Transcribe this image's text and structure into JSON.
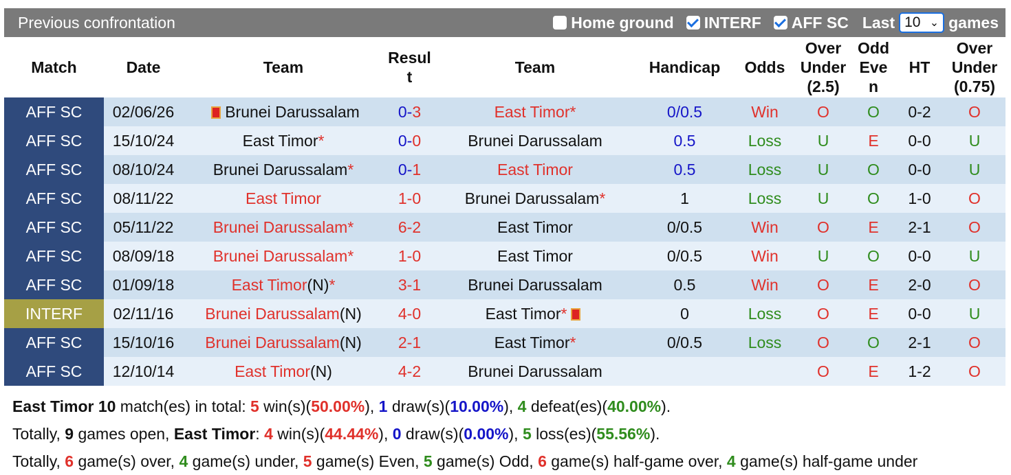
{
  "header": {
    "title": "Previous confrontation",
    "home_ground_label": "Home ground",
    "interf_label": "INTERF",
    "affsc_label": "AFF SC",
    "last_label": "Last",
    "last_value": "10",
    "games_label": "games"
  },
  "columns": {
    "match": "Match",
    "date": "Date",
    "team_home": "Team",
    "result_line1": "Resul",
    "result_line2": "t",
    "team_away": "Team",
    "handicap": "Handicap",
    "odds": "Odds",
    "ou_line1": "Over",
    "ou_line2": "Under",
    "ou_line3": "(2.5)",
    "oe_line1": "Odd",
    "oe_line2": "Eve",
    "oe_line3": "n",
    "ht": "HT",
    "ou2_line1": "Over",
    "ou2_line2": "Under",
    "ou2_line3": "(0.75)"
  },
  "rows": [
    {
      "match": "AFF SC",
      "date": "02/06/26",
      "home": "Brunei Darussalam",
      "home_flag": true,
      "home_star": "",
      "home_n": "",
      "home_color": "black",
      "res_home": "0",
      "res_away": "3",
      "res_color": "blue",
      "away": "East Timor",
      "away_star": "*",
      "away_n": "",
      "away_flag": false,
      "away_color": "red",
      "handicap": "0/0.5",
      "hc_color": "blue",
      "odds": "Win",
      "odds_color": "red",
      "ou": "O",
      "ou_color": "red",
      "oe": "O",
      "oe_color": "green",
      "ht": "0-2",
      "ou2": "O",
      "ou2_color": "red"
    },
    {
      "match": "AFF SC",
      "date": "15/10/24",
      "home": "East Timor",
      "home_flag": false,
      "home_star": "*",
      "home_n": "",
      "home_color": "black",
      "res_home": "0",
      "res_away": "0",
      "res_color": "blue",
      "away": "Brunei Darussalam",
      "away_star": "",
      "away_n": "",
      "away_flag": false,
      "away_color": "black",
      "handicap": "0.5",
      "hc_color": "blue",
      "odds": "Loss",
      "odds_color": "green",
      "ou": "U",
      "ou_color": "green",
      "oe": "E",
      "oe_color": "red",
      "ht": "0-0",
      "ou2": "U",
      "ou2_color": "green"
    },
    {
      "match": "AFF SC",
      "date": "08/10/24",
      "home": "Brunei Darussalam",
      "home_flag": false,
      "home_star": "*",
      "home_n": "",
      "home_color": "black",
      "res_home": "0",
      "res_away": "1",
      "res_color": "blue",
      "away": "East Timor",
      "away_star": "",
      "away_n": "",
      "away_flag": false,
      "away_color": "red",
      "handicap": "0.5",
      "hc_color": "blue",
      "odds": "Loss",
      "odds_color": "green",
      "ou": "U",
      "ou_color": "green",
      "oe": "O",
      "oe_color": "green",
      "ht": "0-0",
      "ou2": "U",
      "ou2_color": "green"
    },
    {
      "match": "AFF SC",
      "date": "08/11/22",
      "home": "East Timor",
      "home_flag": false,
      "home_star": "",
      "home_n": "",
      "home_color": "red",
      "res_home": "1",
      "res_away": "0",
      "res_color": "red",
      "away": "Brunei Darussalam",
      "away_star": "*",
      "away_n": "",
      "away_flag": false,
      "away_color": "black",
      "handicap": "1",
      "hc_color": "black",
      "odds": "Loss",
      "odds_color": "green",
      "ou": "U",
      "ou_color": "green",
      "oe": "O",
      "oe_color": "green",
      "ht": "1-0",
      "ou2": "O",
      "ou2_color": "red"
    },
    {
      "match": "AFF SC",
      "date": "05/11/22",
      "home": "Brunei Darussalam",
      "home_flag": false,
      "home_star": "*",
      "home_n": "",
      "home_color": "red",
      "res_home": "6",
      "res_away": "2",
      "res_color": "red",
      "away": "East Timor",
      "away_star": "",
      "away_n": "",
      "away_flag": false,
      "away_color": "black",
      "handicap": "0/0.5",
      "hc_color": "black",
      "odds": "Win",
      "odds_color": "red",
      "ou": "O",
      "ou_color": "red",
      "oe": "E",
      "oe_color": "red",
      "ht": "2-1",
      "ou2": "O",
      "ou2_color": "red"
    },
    {
      "match": "AFF SC",
      "date": "08/09/18",
      "home": "Brunei Darussalam",
      "home_flag": false,
      "home_star": "*",
      "home_n": "",
      "home_color": "red",
      "res_home": "1",
      "res_away": "0",
      "res_color": "red",
      "away": "East Timor",
      "away_star": "",
      "away_n": "",
      "away_flag": false,
      "away_color": "black",
      "handicap": "0/0.5",
      "hc_color": "black",
      "odds": "Win",
      "odds_color": "red",
      "ou": "U",
      "ou_color": "green",
      "oe": "O",
      "oe_color": "green",
      "ht": "0-0",
      "ou2": "U",
      "ou2_color": "green"
    },
    {
      "match": "AFF SC",
      "date": "01/09/18",
      "home": "East Timor",
      "home_flag": false,
      "home_star": "*",
      "home_n": "(N)",
      "home_color": "red",
      "res_home": "3",
      "res_away": "1",
      "res_color": "red",
      "away": "Brunei Darussalam",
      "away_star": "",
      "away_n": "",
      "away_flag": false,
      "away_color": "black",
      "handicap": "0.5",
      "hc_color": "black",
      "odds": "Win",
      "odds_color": "red",
      "ou": "O",
      "ou_color": "red",
      "oe": "E",
      "oe_color": "red",
      "ht": "2-0",
      "ou2": "O",
      "ou2_color": "red"
    },
    {
      "match": "INTERF",
      "date": "02/11/16",
      "home": "Brunei Darussalam",
      "home_flag": false,
      "home_star": "",
      "home_n": "(N)",
      "home_color": "red",
      "res_home": "4",
      "res_away": "0",
      "res_color": "red",
      "away": "East Timor",
      "away_star": "*",
      "away_n": "",
      "away_flag": true,
      "away_color": "black",
      "handicap": "0",
      "hc_color": "black",
      "odds": "Loss",
      "odds_color": "green",
      "ou": "O",
      "ou_color": "red",
      "oe": "E",
      "oe_color": "red",
      "ht": "0-0",
      "ou2": "U",
      "ou2_color": "green"
    },
    {
      "match": "AFF SC",
      "date": "15/10/16",
      "home": "Brunei Darussalam",
      "home_flag": false,
      "home_star": "",
      "home_n": "(N)",
      "home_color": "red",
      "res_home": "2",
      "res_away": "1",
      "res_color": "red",
      "away": "East Timor",
      "away_star": "*",
      "away_n": "",
      "away_flag": false,
      "away_color": "black",
      "handicap": "0/0.5",
      "hc_color": "black",
      "odds": "Loss",
      "odds_color": "green",
      "ou": "O",
      "ou_color": "red",
      "oe": "O",
      "oe_color": "green",
      "ht": "2-1",
      "ou2": "O",
      "ou2_color": "red"
    },
    {
      "match": "AFF SC",
      "date": "12/10/14",
      "home": "East Timor",
      "home_flag": false,
      "home_star": "",
      "home_n": "(N)",
      "home_color": "red",
      "res_home": "4",
      "res_away": "2",
      "res_color": "red",
      "away": "Brunei Darussalam",
      "away_star": "",
      "away_n": "",
      "away_flag": false,
      "away_color": "black",
      "handicap": "",
      "hc_color": "black",
      "odds": "",
      "odds_color": "black",
      "ou": "O",
      "ou_color": "red",
      "oe": "E",
      "oe_color": "red",
      "ht": "1-2",
      "ou2": "O",
      "ou2_color": "red"
    }
  ],
  "summary": {
    "line1": {
      "team": "East Timor 10",
      "t1": " match(es) in total: ",
      "wins": "5",
      "t2": " win(s)(",
      "win_pct": "50.00%",
      "t3": "), ",
      "draws": "1",
      "t4": " draw(s)(",
      "draw_pct": "10.00%",
      "t5": "), ",
      "defeats": "4",
      "t6": " defeat(es)(",
      "defeat_pct": "40.00%",
      "t7": ")."
    },
    "line2": {
      "t1": "Totally, ",
      "open": "9",
      "t2": " games open, ",
      "team": "East Timor",
      "t3": ": ",
      "wins": "4",
      "t4": " win(s)(",
      "win_pct": "44.44%",
      "t5": "), ",
      "draws": "0",
      "t6": " draw(s)(",
      "draw_pct": "0.00%",
      "t7": "), ",
      "losses": "5",
      "t8": " loss(es)(",
      "loss_pct": "55.56%",
      "t9": ")."
    },
    "line3": {
      "t1": "Totally, ",
      "over": "6",
      "t2": " game(s) over, ",
      "under": "4",
      "t3": " game(s) under, ",
      "even": "5",
      "t4": " game(s) Even, ",
      "odd": "5",
      "t5": " game(s) Odd, ",
      "hover": "6",
      "t6": " game(s) half-game over, ",
      "hunder": "4",
      "t7": " game(s) half-game under"
    }
  }
}
